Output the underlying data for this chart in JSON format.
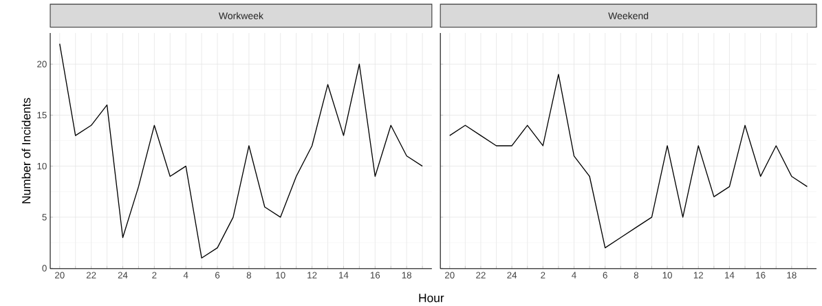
{
  "chart_data": [
    {
      "type": "line",
      "title": "Workweek",
      "xlabel": "Hour",
      "ylabel": "Number of Incidents",
      "categories": [
        "20",
        null,
        "22",
        null,
        "24",
        null,
        "2",
        null,
        "4",
        null,
        "6",
        null,
        "8",
        null,
        "10",
        null,
        "12",
        null,
        "14",
        null,
        "16",
        null,
        "18",
        null
      ],
      "series": [
        {
          "color": "#000000",
          "values": [
            22,
            13,
            14,
            16,
            3,
            8,
            14,
            9,
            10,
            1,
            2,
            5,
            12,
            6,
            5,
            9,
            12,
            18,
            13,
            20,
            9,
            14,
            11,
            10
          ]
        }
      ],
      "ylim": [
        -0.05,
        23.05
      ],
      "yticks": [
        0,
        5,
        10,
        15,
        20
      ],
      "grid": true
    },
    {
      "type": "line",
      "title": "Weekend",
      "categories": [
        "20",
        null,
        "22",
        null,
        "24",
        null,
        "2",
        null,
        "4",
        null,
        "6",
        null,
        "8",
        null,
        "10",
        null,
        "12",
        null,
        "14",
        null,
        "16",
        null,
        "18",
        null
      ],
      "series": [
        {
          "color": "#000000",
          "values": [
            13,
            14,
            13,
            12,
            12,
            14,
            12,
            19,
            11,
            9,
            2,
            3,
            4,
            5,
            12,
            5,
            12,
            7,
            8,
            14,
            9,
            12,
            9,
            8
          ]
        }
      ],
      "ylim": [
        -0.05,
        23.05
      ],
      "yticks": [
        0,
        5,
        10,
        15,
        20
      ],
      "grid": true,
      "tick_labels": "x"
    }
  ]
}
